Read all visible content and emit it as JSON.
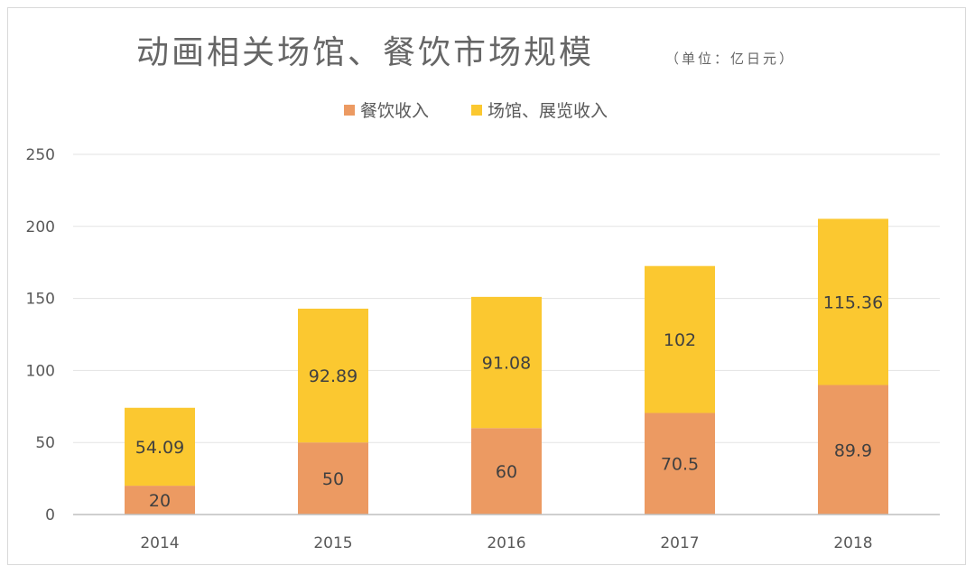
{
  "chart_data": {
    "type": "bar",
    "stacked": true,
    "title": "动画相关场馆、餐饮市场规模",
    "subtitle": "（单位：亿日元）",
    "xlabel": "",
    "ylabel": "",
    "categories": [
      "2014",
      "2015",
      "2016",
      "2017",
      "2018"
    ],
    "ylim": [
      0,
      250
    ],
    "yticks": [
      0,
      50,
      100,
      150,
      200,
      250
    ],
    "y_tick_labels": [
      "0",
      "50",
      "100",
      "150",
      "200",
      "250"
    ],
    "grid": true,
    "legend_position": "top",
    "series": [
      {
        "name": "餐饮收入",
        "color": "#ec9a62",
        "values": [
          20,
          50,
          60,
          70.5,
          89.9
        ],
        "labels": [
          "20",
          "50",
          "60",
          "70.5",
          "89.9"
        ]
      },
      {
        "name": "场馆、展览收入",
        "color": "#fbc830",
        "values": [
          54.09,
          92.89,
          91.08,
          102,
          115.36
        ],
        "labels": [
          "54.09",
          "92.89",
          "91.08",
          "102",
          "115.36"
        ]
      }
    ]
  }
}
